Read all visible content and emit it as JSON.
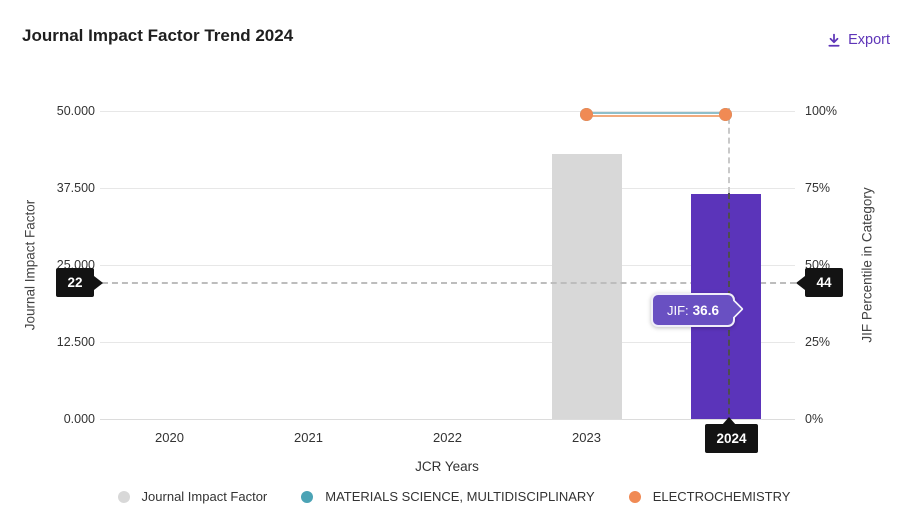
{
  "header": {
    "title": "Journal Impact Factor Trend 2024",
    "export_label": "Export"
  },
  "chart_data": {
    "type": "bar",
    "title": "Journal Impact Factor Trend 2024",
    "categories": [
      "2020",
      "2021",
      "2022",
      "2023",
      "2024"
    ],
    "series": [
      {
        "name": "Journal Impact Factor",
        "kind": "bar",
        "axis": "left",
        "values": [
          null,
          null,
          null,
          43.0,
          36.6
        ],
        "colors": [
          null,
          null,
          null,
          "#d8d8d8",
          "#5b34ba"
        ]
      },
      {
        "name": "MATERIALS SCIENCE, MULTIDISCIPLINARY",
        "kind": "line",
        "axis": "right",
        "values": [
          null,
          null,
          null,
          99.0,
          99.0
        ],
        "line_color": "#8fbfca",
        "marker_color": "#4ba3b5"
      },
      {
        "name": "ELECTROCHEMISTRY",
        "kind": "line",
        "axis": "right",
        "values": [
          null,
          null,
          null,
          98.8,
          98.8
        ],
        "line_color": "#f2aa7c",
        "marker_color": "#f08a54"
      }
    ],
    "xlabel": "JCR Years",
    "ylabel_left": "Journal Impact Factor",
    "ylabel_right": "JIF Percentile in Category",
    "ylim_left": [
      0,
      50
    ],
    "ylim_right": [
      0,
      100
    ],
    "yticks_left": [
      "50.000",
      "37.500",
      "25.000",
      "12.500",
      "0.000"
    ],
    "yticks_right": [
      "100%",
      "75%",
      "50%",
      "25%",
      "0%"
    ],
    "grid": true,
    "legend_position": "bottom",
    "crosshair": {
      "left_value": "22",
      "right_value": "44",
      "x_value": "2024"
    },
    "tooltip": {
      "label": "JIF:",
      "value": "36.6"
    }
  },
  "legend": {
    "items": [
      {
        "label": "Journal Impact Factor",
        "color": "#d8d8d8"
      },
      {
        "label": "MATERIALS SCIENCE, MULTIDISCIPLINARY",
        "color": "#4ba3b5"
      },
      {
        "label": "ELECTROCHEMISTRY",
        "color": "#f08a54"
      }
    ]
  },
  "colors": {
    "accent_purple": "#5e35b8",
    "bar_gray": "#d8d8d8",
    "bar_purple": "#5b34ba",
    "teal": "#4ba3b5",
    "orange": "#f08a54",
    "tag_black": "#131313",
    "tooltip_bg": "#6950c2"
  }
}
